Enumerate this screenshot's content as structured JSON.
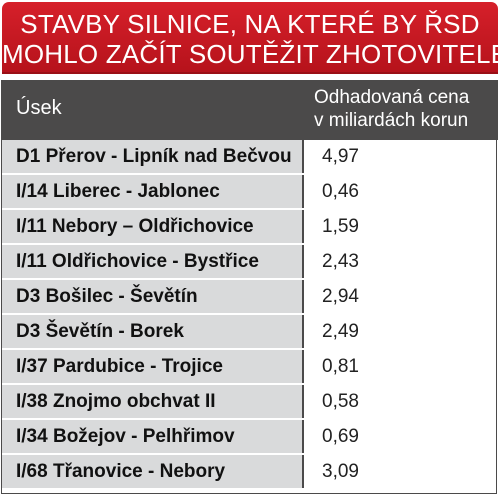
{
  "title": {
    "line1": "STAVBY SILNICE, NA KTERÉ BY ŘSD",
    "line2": "MOHLO ZAČÍT SOUTĚŽIT ZHOTOVITELE"
  },
  "colors": {
    "title_red": "#c41920",
    "header_dark": "#4b4a4a",
    "row_gray": "#d9dadb"
  },
  "chart_data": {
    "type": "table",
    "title": "STAVBY SILNICE, NA KTERÉ BY ŘSD MOHLO ZAČÍT SOUTĚŽIT ZHOTOVITELE",
    "columns": [
      "Úsek",
      "Odhadovaná cena v miliardách korun"
    ],
    "rows": [
      {
        "name": "D1 Přerov - Lipník nad Bečvou",
        "value": "4,97"
      },
      {
        "name": "I/14 Liberec - Jablonec",
        "value": "0,46"
      },
      {
        "name": "I/11 Nebory – Oldřichovice",
        "value": "1,59"
      },
      {
        "name": "I/11 Oldřichovice - Bystřice",
        "value": "2,43"
      },
      {
        "name": "D3 Bošilec - Ševětín",
        "value": "2,94"
      },
      {
        "name": "D3 Ševětín - Borek",
        "value": "2,49"
      },
      {
        "name": "I/37 Pardubice - Trojice",
        "value": "0,81"
      },
      {
        "name": "I/38 Znojmo obchvat II",
        "value": "0,58"
      },
      {
        "name": "I/34 Božejov - Pelhřimov",
        "value": "0,69"
      },
      {
        "name": "I/68 Třanovice - Nebory",
        "value": "3,09"
      }
    ]
  },
  "header": {
    "col1": "Úsek",
    "col2_line1": "Odhadovaná cena",
    "col2_line2": "v miliardách korun"
  }
}
